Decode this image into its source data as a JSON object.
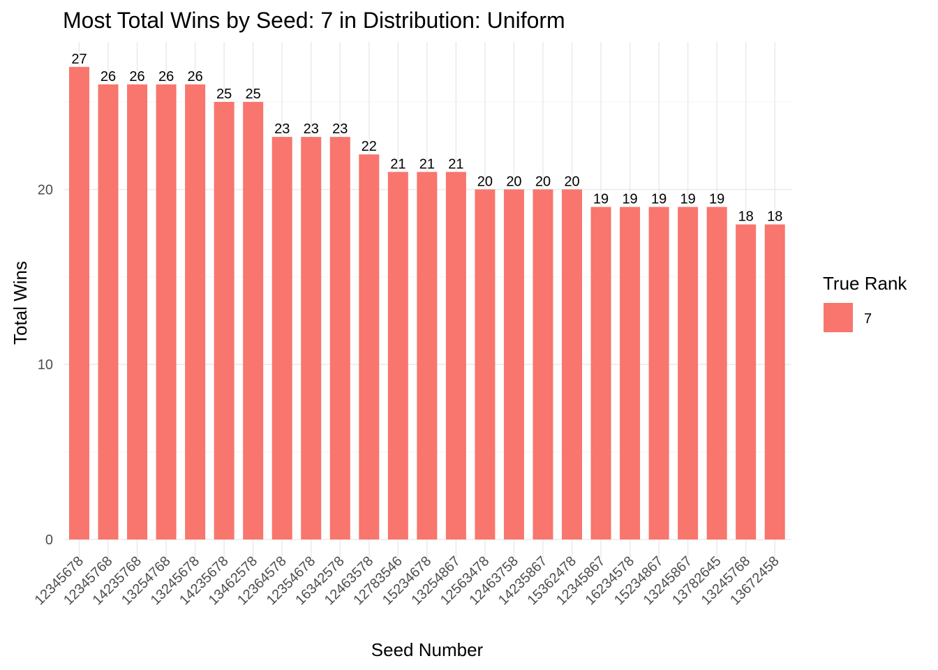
{
  "chart_data": {
    "type": "bar",
    "title": "Most Total Wins by Seed: 7 in Distribution: Uniform",
    "xlabel": "Seed Number",
    "ylabel": "Total Wins",
    "ylim": [
      0,
      27
    ],
    "yticks": [
      0,
      10,
      20
    ],
    "grid": true,
    "categories": [
      "12345678",
      "12345768",
      "14235768",
      "13254768",
      "13245678",
      "14235678",
      "13462578",
      "12364578",
      "12354678",
      "16342578",
      "12463578",
      "12783546",
      "15234678",
      "13254867",
      "12563478",
      "12463758",
      "14235867",
      "15362478",
      "12345867",
      "16234578",
      "15234867",
      "13245867",
      "13782645",
      "13245768",
      "13672458"
    ],
    "series": [
      {
        "name": "7",
        "values": [
          27,
          26,
          26,
          26,
          26,
          25,
          25,
          23,
          23,
          23,
          22,
          21,
          21,
          21,
          20,
          20,
          20,
          20,
          19,
          19,
          19,
          19,
          19,
          18,
          18
        ]
      }
    ],
    "legend": {
      "title": "True Rank",
      "position": "right",
      "entries": [
        "7"
      ]
    },
    "colors": {
      "bar": "#F8766D"
    }
  }
}
